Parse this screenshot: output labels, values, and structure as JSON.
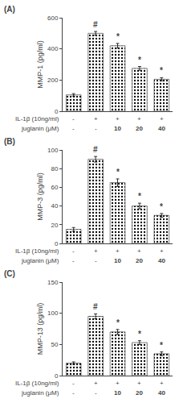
{
  "chart_data": [
    {
      "type": "bar",
      "title": "(A)",
      "ylabel": "MMP-1 (pg/ml)",
      "values": [
        105,
        500,
        420,
        275,
        205
      ],
      "errors": [
        8,
        12,
        15,
        12,
        10
      ],
      "color": "#d4d4b0",
      "ylim": [
        0,
        600
      ],
      "yticks": [
        0,
        200,
        400,
        600
      ],
      "grid": false,
      "tick_labels": "y",
      "annotations": [
        {
          "x": 1,
          "text": "#"
        },
        {
          "x": 2,
          "text": "*"
        },
        {
          "x": 3,
          "text": "*"
        },
        {
          "x": 4,
          "text": "*"
        }
      ],
      "x_label_rows": [
        {
          "name": "IL-1β (10ng/ml)",
          "labels": [
            "-",
            "+",
            "+",
            "+",
            "+"
          ]
        },
        {
          "name": "juglanin (μM)",
          "labels": [
            "-",
            "-",
            "10",
            "20",
            "40"
          ]
        }
      ]
    },
    {
      "type": "bar",
      "title": "(B)",
      "ylabel": "MMP-3 (pg/ml)",
      "values": [
        15,
        90,
        65,
        40,
        30
      ],
      "errors": [
        2,
        3,
        4,
        3,
        2
      ],
      "color": "#d4d4b0",
      "ylim": [
        0,
        100
      ],
      "yticks": [
        0,
        20,
        40,
        60,
        80,
        100
      ],
      "grid": false,
      "tick_labels": "y",
      "annotations": [
        {
          "x": 1,
          "text": "#"
        },
        {
          "x": 2,
          "text": "*"
        },
        {
          "x": 3,
          "text": "*"
        },
        {
          "x": 4,
          "text": "*"
        }
      ],
      "x_label_rows": [
        {
          "name": "IL-1β (10ng/ml)",
          "labels": [
            "-",
            "+",
            "+",
            "+",
            "+"
          ]
        },
        {
          "name": "juglanin (μM)",
          "labels": [
            "-",
            "-",
            "10",
            "20",
            "40"
          ]
        }
      ]
    },
    {
      "type": "bar",
      "title": "(C)",
      "ylabel": "MMP-13 (pg/ml)",
      "values": [
        20,
        95,
        70,
        53,
        35
      ],
      "errors": [
        2,
        4,
        4,
        3,
        3
      ],
      "color": "#d4d4b0",
      "ylim": [
        0,
        150
      ],
      "yticks": [
        0,
        50,
        100,
        150
      ],
      "grid": false,
      "tick_labels": "y",
      "annotations": [
        {
          "x": 1,
          "text": "#"
        },
        {
          "x": 2,
          "text": "*"
        },
        {
          "x": 3,
          "text": "*"
        },
        {
          "x": 4,
          "text": "*"
        }
      ],
      "x_label_rows": [
        {
          "name": "IL-1β (10ng/ml)",
          "labels": [
            "-",
            "+",
            "+",
            "+",
            "+"
          ]
        },
        {
          "name": "juglanin (μM)",
          "labels": [
            "-",
            "-",
            "10",
            "20",
            "40"
          ]
        }
      ]
    }
  ]
}
